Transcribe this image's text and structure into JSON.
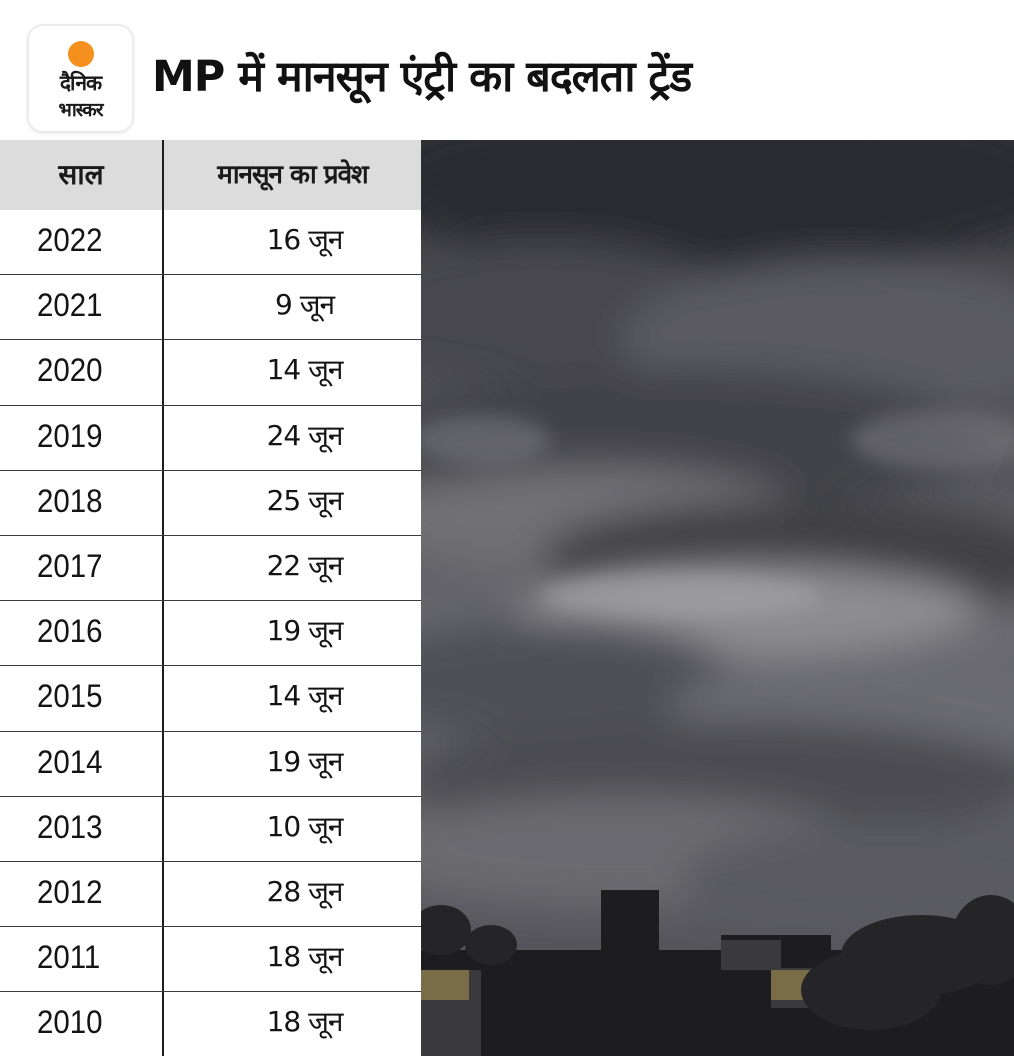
{
  "brand": {
    "logo_line1": "दैनिक",
    "logo_line2": "भास्कर",
    "logo_color": "#f5901f"
  },
  "title": "MP में मानसून एंट्री का बदलता ट्रेंड",
  "table": {
    "headers": {
      "year": "साल",
      "entry": "मानसून का प्रवेश"
    },
    "rows": [
      {
        "year": "2022",
        "entry": "16 जून"
      },
      {
        "year": "2021",
        "entry": "9 जून"
      },
      {
        "year": "2020",
        "entry": "14 जून"
      },
      {
        "year": "2019",
        "entry": "24 जून"
      },
      {
        "year": "2018",
        "entry": "25 जून"
      },
      {
        "year": "2017",
        "entry": "22 जून"
      },
      {
        "year": "2016",
        "entry": "19 जून"
      },
      {
        "year": "2015",
        "entry": "14 जून"
      },
      {
        "year": "2014",
        "entry": "19 जून"
      },
      {
        "year": "2013",
        "entry": "10 जून"
      },
      {
        "year": "2012",
        "entry": "28 जून"
      },
      {
        "year": "2011",
        "entry": "18 जून"
      },
      {
        "year": "2010",
        "entry": "18 जून"
      }
    ]
  },
  "photo": {
    "subject": "dark-monsoon-clouds-over-city"
  }
}
